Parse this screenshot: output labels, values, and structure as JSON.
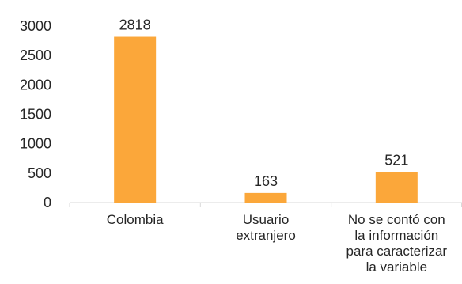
{
  "chart_data": {
    "type": "bar",
    "categories": [
      [
        "Colombia"
      ],
      [
        "Usuario",
        "extranjero"
      ],
      [
        "No se contó con",
        "la información",
        "para caracterizar",
        "la variable"
      ]
    ],
    "values": [
      2818,
      163,
      521
    ],
    "data_labels": [
      "2818",
      "163",
      "521"
    ],
    "ylim": [
      0,
      3000
    ],
    "yticks": [
      0,
      500,
      1000,
      1500,
      2000,
      2500,
      3000
    ],
    "ytick_labels": [
      "0",
      "500",
      "1000",
      "1500",
      "2000",
      "2500",
      "3000"
    ],
    "bar_color": "#FBA73A",
    "axis_color": "#D9D9D9",
    "text_color": "#262626",
    "grid": false,
    "legend": "none"
  }
}
